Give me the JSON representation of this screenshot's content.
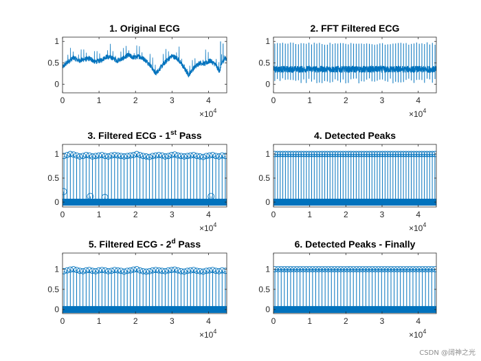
{
  "figure": {
    "line_color": "#0072BD",
    "axis_color": "#262626",
    "watermark": "CSDN @阔神之光"
  },
  "chart_data": [
    {
      "type": "line",
      "title": "1. Original ECG",
      "title_parts": [
        {
          "text": "1. Original ECG"
        }
      ],
      "xlim": [
        0,
        45000
      ],
      "ylim": [
        -0.2,
        1.1
      ],
      "xticks": [
        0,
        10000,
        20000,
        30000,
        40000
      ],
      "xtick_labels": [
        "0",
        "1",
        "2",
        "3",
        "4"
      ],
      "yticks": [
        0,
        0.5,
        1
      ],
      "ytick_labels": [
        "0",
        "0.5",
        "1"
      ],
      "x_exponent_base": "×10",
      "x_exponent_power": "4",
      "baseline_points": [
        [
          0,
          0.4
        ],
        [
          1500,
          0.52
        ],
        [
          3000,
          0.62
        ],
        [
          4500,
          0.55
        ],
        [
          6000,
          0.58
        ],
        [
          7500,
          0.6
        ],
        [
          9000,
          0.52
        ],
        [
          10500,
          0.56
        ],
        [
          12000,
          0.64
        ],
        [
          13500,
          0.62
        ],
        [
          15000,
          0.55
        ],
        [
          16500,
          0.6
        ],
        [
          18000,
          0.68
        ],
        [
          19500,
          0.62
        ],
        [
          21000,
          0.65
        ],
        [
          22500,
          0.58
        ],
        [
          24000,
          0.45
        ],
        [
          25500,
          0.25
        ],
        [
          27000,
          0.4
        ],
        [
          28500,
          0.55
        ],
        [
          30000,
          0.66
        ],
        [
          31500,
          0.6
        ],
        [
          33000,
          0.42
        ],
        [
          34500,
          0.22
        ],
        [
          36000,
          0.38
        ],
        [
          37500,
          0.5
        ],
        [
          39000,
          0.48
        ],
        [
          40500,
          0.55
        ],
        [
          42000,
          0.45
        ],
        [
          43000,
          0.3
        ],
        [
          43800,
          0.52
        ],
        [
          44500,
          0.6
        ],
        [
          45000,
          0.6
        ]
      ],
      "beat_count": 62,
      "beat_amplitude": 0.3,
      "spikes": [
        [
          43300,
          1.0
        ],
        [
          44000,
          0.95
        ]
      ]
    },
    {
      "type": "line",
      "title": "2. FFT Filtered ECG",
      "title_parts": [
        {
          "text": "2. FFT Filtered ECG"
        }
      ],
      "xlim": [
        0,
        45000
      ],
      "ylim": [
        -0.2,
        1.1
      ],
      "xticks": [
        0,
        10000,
        20000,
        30000,
        40000
      ],
      "xtick_labels": [
        "0",
        "1",
        "2",
        "3",
        "4"
      ],
      "yticks": [
        0,
        0.5,
        1
      ],
      "ytick_labels": [
        "0",
        "0.5",
        "1"
      ],
      "x_exponent_base": "×10",
      "x_exponent_power": "4",
      "center": 0.35,
      "beat_count": 62,
      "beat_peak": 0.98,
      "beat_trough": 0.02,
      "noise_band": 0.08
    },
    {
      "type": "stem",
      "title": "3. Filtered ECG - 1st Pass",
      "title_parts": [
        {
          "text": "3. Filtered ECG - 1"
        },
        {
          "text": "st",
          "sup": true
        },
        {
          "text": " Pass"
        }
      ],
      "xlim": [
        0,
        45000
      ],
      "ylim": [
        -0.1,
        1.2
      ],
      "xticks": [
        0,
        10000,
        20000,
        30000,
        40000
      ],
      "xtick_labels": [
        "0",
        "1",
        "2",
        "3",
        "4"
      ],
      "yticks": [
        0,
        0.5,
        1
      ],
      "ytick_labels": [
        "0",
        "0.5",
        "1"
      ],
      "x_exponent_base": "×10",
      "x_exponent_power": "4",
      "peak_count": 52,
      "peak_values": [
        0.96,
        0.98,
        1.0,
        0.99,
        0.97,
        0.95,
        0.96,
        0.98,
        0.97,
        0.95,
        0.96,
        0.97,
        0.98,
        0.96,
        0.95,
        0.97,
        0.98,
        0.97,
        0.96,
        0.95,
        0.96,
        0.97,
        0.98,
        1.0,
        0.98,
        0.96,
        0.95,
        0.94,
        0.96,
        0.97,
        0.98,
        0.97,
        0.95,
        0.96,
        0.98,
        0.99,
        0.97,
        0.96,
        0.95,
        0.96,
        0.97,
        0.98,
        0.96,
        0.95,
        0.94,
        0.96,
        0.97,
        0.98,
        0.96,
        0.95,
        0.97,
        0.96
      ],
      "extra_points": [
        [
          300,
          0.22
        ],
        [
          7600,
          0.12
        ],
        [
          11600,
          0.1
        ],
        [
          40700,
          0.12
        ]
      ]
    },
    {
      "type": "stem",
      "title": "4. Detected Peaks",
      "title_parts": [
        {
          "text": "4. Detected Peaks"
        }
      ],
      "xlim": [
        0,
        45000
      ],
      "ylim": [
        -0.1,
        1.2
      ],
      "xticks": [
        0,
        10000,
        20000,
        30000,
        40000
      ],
      "xtick_labels": [
        "0",
        "1",
        "2",
        "3",
        "4"
      ],
      "yticks": [
        0,
        0.5,
        1
      ],
      "ytick_labels": [
        "0",
        "0.5",
        "1"
      ],
      "x_exponent_base": "×10",
      "x_exponent_power": "4",
      "peak_count": 62,
      "peak_value": 1.0
    },
    {
      "type": "stem",
      "title": "5. Filtered ECG - 2d Pass",
      "title_parts": [
        {
          "text": "5. Filtered ECG - 2"
        },
        {
          "text": "d",
          "sup": true
        },
        {
          "text": " Pass"
        }
      ],
      "xlim": [
        0,
        45000
      ],
      "ylim": [
        -0.1,
        1.4
      ],
      "xticks": [
        0,
        10000,
        20000,
        30000,
        40000
      ],
      "xtick_labels": [
        "0",
        "1",
        "2",
        "3",
        "4"
      ],
      "yticks": [
        0,
        0.5,
        1
      ],
      "ytick_labels": [
        "0",
        "0.5",
        "1"
      ],
      "x_exponent_base": "×10",
      "x_exponent_power": "4",
      "peak_count": 52,
      "peak_values": [
        0.95,
        0.97,
        0.99,
        1.0,
        0.98,
        0.96,
        0.95,
        0.97,
        0.98,
        0.96,
        0.95,
        0.97,
        0.98,
        0.97,
        0.95,
        0.96,
        0.98,
        0.97,
        0.96,
        0.94,
        0.96,
        0.97,
        0.99,
        1.0,
        0.97,
        0.95,
        0.94,
        0.95,
        0.97,
        0.98,
        0.97,
        0.96,
        0.95,
        0.97,
        0.98,
        0.99,
        0.97,
        0.95,
        0.94,
        0.96,
        0.97,
        0.98,
        0.96,
        0.95,
        0.94,
        0.96,
        0.97,
        0.98,
        0.96,
        0.95,
        0.97,
        0.96
      ]
    },
    {
      "type": "stem",
      "title": "6. Detected Peaks - Finally",
      "title_parts": [
        {
          "text": "6. Detected Peaks - Finally"
        }
      ],
      "xlim": [
        0,
        45000
      ],
      "ylim": [
        -0.1,
        1.4
      ],
      "xticks": [
        0,
        10000,
        20000,
        30000,
        40000
      ],
      "xtick_labels": [
        "0",
        "1",
        "2",
        "3",
        "4"
      ],
      "yticks": [
        0,
        0.5,
        1
      ],
      "ytick_labels": [
        "0",
        "0.5",
        "1"
      ],
      "x_exponent_base": "×10",
      "x_exponent_power": "4",
      "peak_count": 52,
      "peak_value": 1.0
    }
  ]
}
